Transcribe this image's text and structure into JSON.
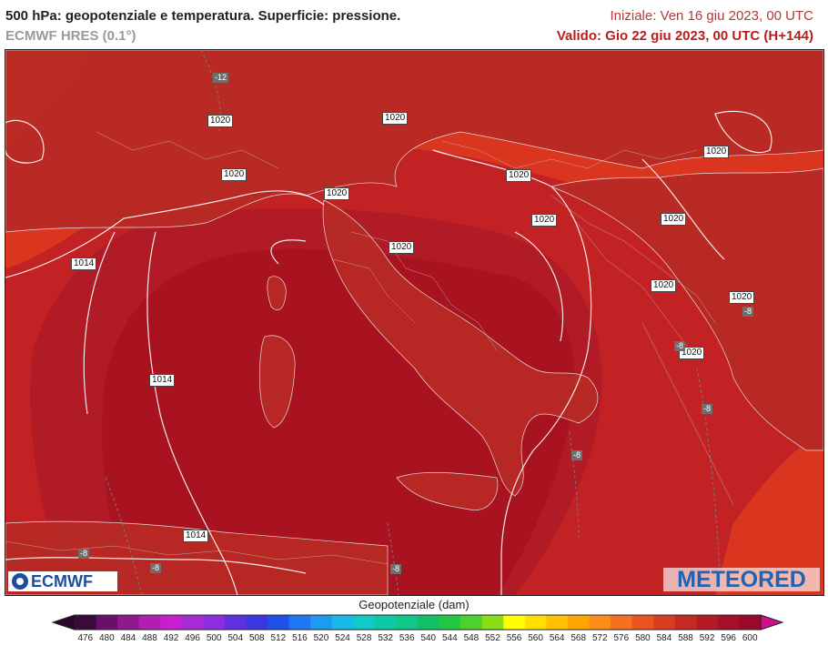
{
  "header": {
    "title": "500 hPa: geopotenziale e temperatura. Superficie: pressione.",
    "model": "ECMWF HRES (0.1°)",
    "init": "Iniziale: Ven 16 giu 2023, 00 UTC",
    "valid": "Valido: Gio 22 giu 2023, 00 UTC (H+144)"
  },
  "logos": {
    "left": "ECMWF",
    "right": "METEORED"
  },
  "pressure_labels": [
    "1020",
    "1020",
    "1020",
    "1020",
    "1020",
    "1020",
    "1020",
    "1020",
    "1020",
    "1020",
    "1020",
    "1020",
    "1020",
    "1014",
    "1014",
    "1014"
  ],
  "temp_labels": [
    "-12",
    "-8",
    "-8",
    "-8",
    "-8",
    "-8",
    "-8",
    "-8"
  ],
  "colorbar": {
    "title": "Geopotenziale (dam)",
    "ticks": [
      "476",
      "480",
      "484",
      "488",
      "492",
      "496",
      "500",
      "504",
      "508",
      "512",
      "516",
      "520",
      "524",
      "528",
      "532",
      "536",
      "540",
      "544",
      "548",
      "552",
      "556",
      "560",
      "564",
      "568",
      "572",
      "576",
      "580",
      "584",
      "588",
      "592",
      "596",
      "600"
    ],
    "colors": [
      "#3a0a3a",
      "#6a0f6a",
      "#8e1a8e",
      "#b01fb0",
      "#c81ed0",
      "#a52bd4",
      "#8a2ee0",
      "#5f2fe0",
      "#3a37e0",
      "#2050e8",
      "#1f78ef",
      "#1e9aef",
      "#1bb8e6",
      "#12c9c9",
      "#10c8a6",
      "#10c688",
      "#12c066",
      "#22c844",
      "#4dd12e",
      "#8ade16",
      "#ffff00",
      "#ffe000",
      "#ffc000",
      "#ffa500",
      "#ff8c1a",
      "#f57020",
      "#e85520",
      "#d93e22",
      "#c62a25",
      "#b41b26",
      "#a40f2a",
      "#970a2c"
    ],
    "min_color": "#2a062a",
    "max_color": "#d0108a"
  },
  "map_colors": {
    "ring_orange": "#ec5a22",
    "outer": "#d9351f",
    "mid": "#c22224",
    "inner": "#b01b25",
    "core": "#a8131f"
  }
}
